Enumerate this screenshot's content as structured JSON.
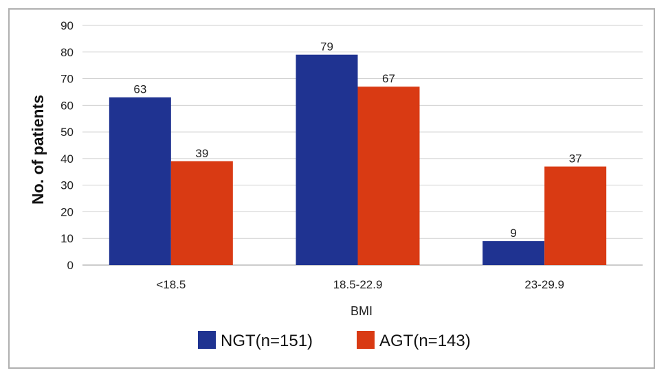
{
  "chart_data": {
    "type": "bar",
    "title": "",
    "xlabel": "BMI",
    "ylabel": "No. of patients",
    "ylim": [
      0,
      90
    ],
    "yticks": [
      0,
      10,
      20,
      30,
      40,
      50,
      60,
      70,
      80,
      90
    ],
    "grid": true,
    "legend_position": "bottom",
    "categories": [
      "<18.5",
      "18.5-22.9",
      "23-29.9"
    ],
    "series": [
      {
        "name": "NGT(n=151)",
        "color": "#1f3391",
        "values": [
          63,
          79,
          9
        ]
      },
      {
        "name": "AGT(n=143)",
        "color": "#d93a13",
        "values": [
          39,
          67,
          37
        ]
      }
    ]
  }
}
